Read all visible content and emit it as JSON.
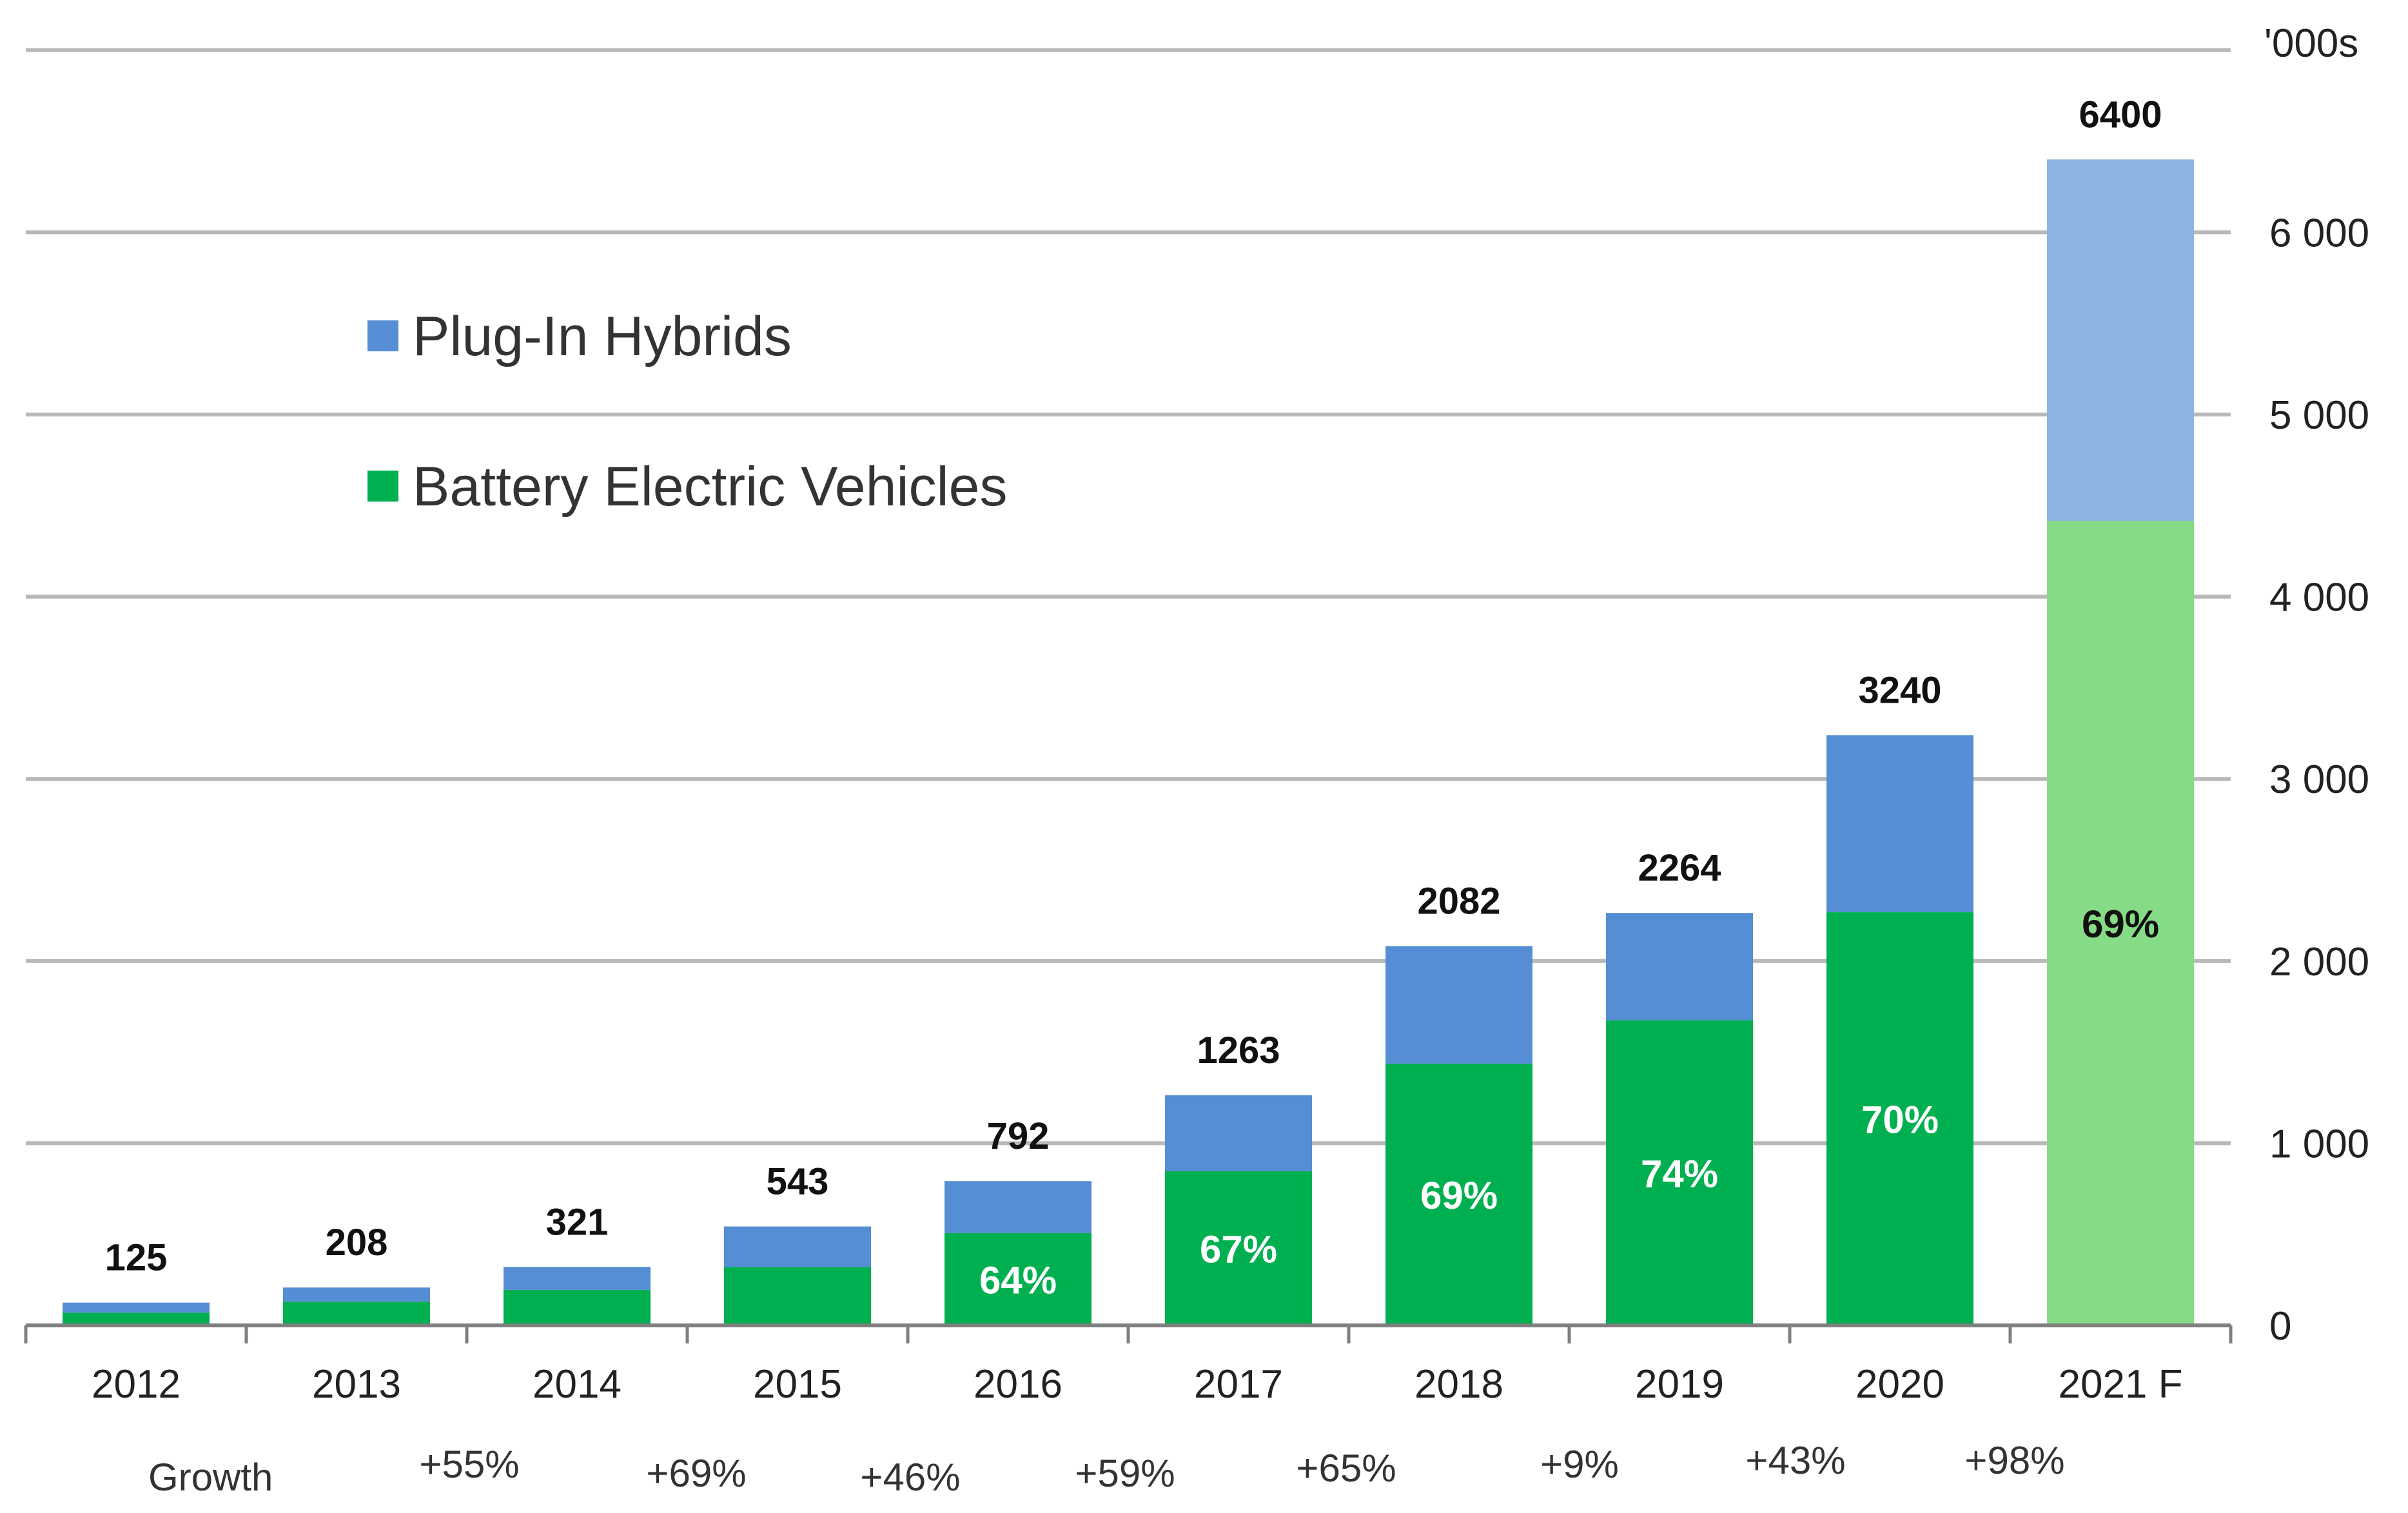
{
  "chart_data": {
    "type": "bar",
    "stacked": true,
    "categories": [
      "2012",
      "2013",
      "2014",
      "2015",
      "2016",
      "2017",
      "2018",
      "2019",
      "2020",
      "2021 F"
    ],
    "totals": [
      125,
      208,
      321,
      543,
      792,
      1263,
      2082,
      2264,
      3240,
      6400
    ],
    "series": [
      {
        "name": "Battery Electric Vehicles",
        "values": [
          70,
          130,
          195,
          320,
          507,
          846,
          1437,
          1675,
          2268,
          4416
        ],
        "color": "#00b050",
        "forecast_color": "#86dc86"
      },
      {
        "name": "Plug-In Hybrids",
        "values": [
          55,
          78,
          126,
          223,
          285,
          417,
          645,
          589,
          972,
          1984
        ],
        "color": "#558ed5",
        "forecast_color": "#8db4e2"
      }
    ],
    "bev_share_labels": [
      "",
      "",
      "",
      "",
      "64%",
      "67%",
      "69%",
      "74%",
      "70%",
      "69%"
    ],
    "growth_title": "Growth",
    "growth": [
      "+55%",
      "+69%",
      "+46%",
      "+59%",
      "+65%",
      "+9%",
      "+43%",
      "+98%"
    ],
    "y_ticks": [
      0,
      1000,
      2000,
      3000,
      4000,
      5000,
      6000
    ],
    "y_tick_labels": [
      "0",
      "1 000",
      "2 000",
      "3 000",
      "4 000",
      "5 000",
      "6 000"
    ],
    "y_unit": "'000s",
    "ylim": [
      0,
      7000
    ],
    "grid": true,
    "legend_position": "top-left"
  }
}
